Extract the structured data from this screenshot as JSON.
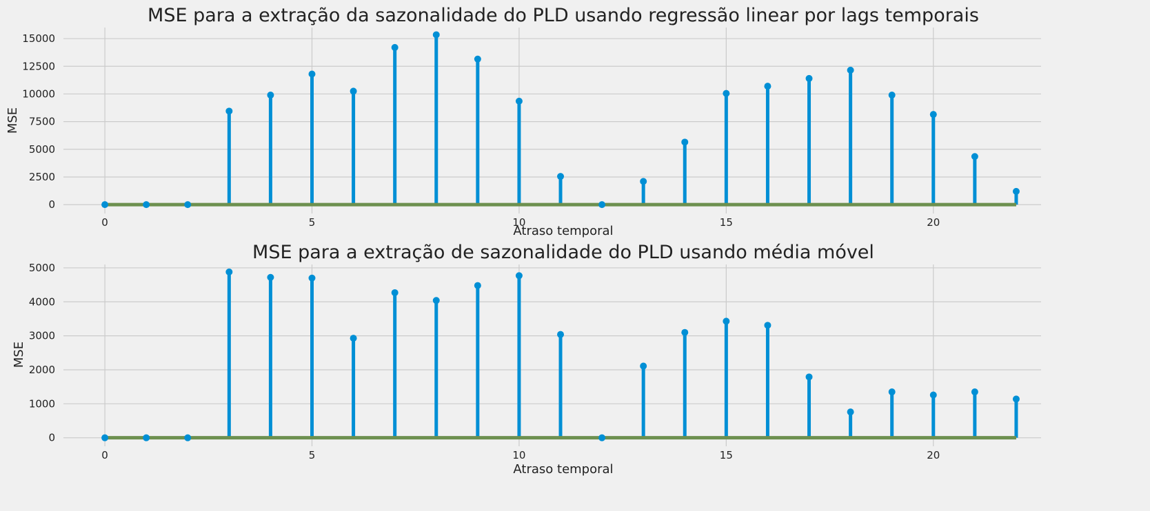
{
  "chart_data": [
    {
      "type": "stem",
      "title": "MSE para a extração da sazonalidade do PLD usando regressão linear por lags temporais",
      "xlabel": "Atraso temporal",
      "ylabel": "MSE",
      "x": [
        0,
        1,
        2,
        3,
        4,
        5,
        6,
        7,
        8,
        9,
        10,
        11,
        12,
        13,
        14,
        15,
        16,
        17,
        18,
        19,
        20,
        21,
        22
      ],
      "values": [
        0,
        0,
        0,
        8450,
        9900,
        11800,
        10250,
        14200,
        15350,
        13150,
        9350,
        2550,
        0,
        2100,
        5650,
        10050,
        10700,
        11400,
        12150,
        9900,
        8150,
        4350,
        1200
      ],
      "xticks": [
        0,
        5,
        10,
        15,
        20
      ],
      "yticks": [
        0,
        2500,
        5000,
        7500,
        10000,
        12500,
        15000
      ],
      "xlim": [
        -1,
        22.6
      ],
      "ylim": [
        -800,
        16000
      ],
      "grid": true,
      "colors": {
        "stem": "#008fd5",
        "baseline": "#6d904f",
        "background": "#f0f0f0",
        "grid": "#cbcbcb"
      }
    },
    {
      "type": "stem",
      "title": "MSE para a extração de sazonalidade do PLD usando média móvel",
      "xlabel": "Atraso temporal",
      "ylabel": "MSE",
      "x": [
        0,
        1,
        2,
        3,
        4,
        5,
        6,
        7,
        8,
        9,
        10,
        11,
        12,
        13,
        14,
        15,
        16,
        17,
        18,
        19,
        20,
        21,
        22
      ],
      "values": [
        0,
        0,
        0,
        4880,
        4720,
        4700,
        2930,
        4270,
        4040,
        4480,
        4770,
        3040,
        0,
        2110,
        3100,
        3430,
        3310,
        1790,
        760,
        1350,
        1260,
        1350,
        1140
      ],
      "xticks": [
        0,
        5,
        10,
        15,
        20
      ],
      "yticks": [
        0,
        1000,
        2000,
        3000,
        4000,
        5000
      ],
      "xlim": [
        -1,
        22.6
      ],
      "ylim": [
        -250,
        5100
      ],
      "grid": true,
      "colors": {
        "stem": "#008fd5",
        "baseline": "#6d904f",
        "background": "#f0f0f0",
        "grid": "#cbcbcb"
      }
    }
  ]
}
